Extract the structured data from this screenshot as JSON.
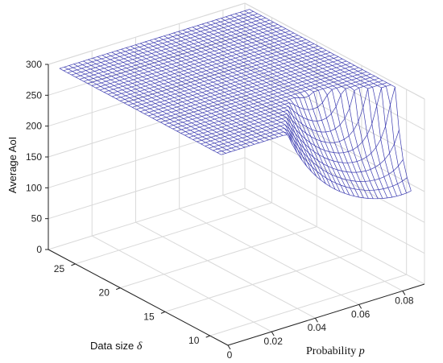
{
  "chart_data": {
    "type": "surface",
    "zlabel": "Average AoI",
    "xlabel_text": "Probability",
    "xlabel_symbol": "p",
    "ylabel_text": "Data size",
    "ylabel_symbol": "δ",
    "x_ticks": [
      "0",
      "0.02",
      "0.04",
      "0.06",
      "0.08"
    ],
    "y_ticks": [
      "10",
      "15",
      "20",
      "25"
    ],
    "z_ticks": [
      "0",
      "50",
      "100",
      "150",
      "200",
      "250",
      "300"
    ],
    "x_range": [
      0,
      0.09
    ],
    "y_range": [
      8,
      28
    ],
    "z_range": [
      0,
      300
    ],
    "grid": true,
    "colors": {
      "mesh": "#3b3bb0",
      "grid": "#d9d9d9",
      "axis": "#222222"
    },
    "surface_model": "Average AoI ≈ δ/p + δ/(1−δ·p) (estimated shape, clipped at 300)"
  }
}
